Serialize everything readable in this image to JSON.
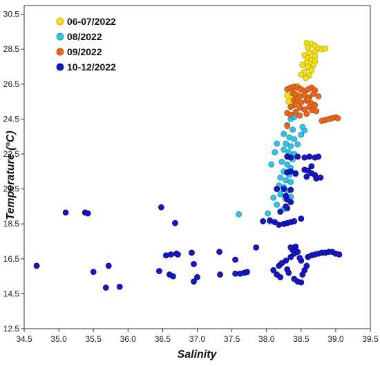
{
  "chart_data": {
    "type": "scatter",
    "xlabel": "Salinity",
    "ylabel": "Temperature (°C)",
    "xlim": [
      34.5,
      39.5
    ],
    "ylim": [
      12.5,
      31.0
    ],
    "xticks": [
      "34.5",
      "35.0",
      "35.5",
      "36.0",
      "36.5",
      "37.0",
      "37.5",
      "38.0",
      "38.5",
      "39.0",
      "39.5"
    ],
    "yticks": [
      "12.5",
      "14.5",
      "16.5",
      "18.5",
      "20.5",
      "22.5",
      "24.5",
      "26.5",
      "28.5",
      "30.5"
    ],
    "grid": false,
    "legend_position": "top-left",
    "series": [
      {
        "name": "06-07/2022",
        "color": "#f5e216",
        "edge": "#b8a20a",
        "points": [
          [
            38.58,
            28.85
          ],
          [
            38.65,
            28.8
          ],
          [
            38.6,
            28.6
          ],
          [
            38.7,
            28.7
          ],
          [
            38.75,
            28.55
          ],
          [
            38.8,
            28.5
          ],
          [
            38.85,
            28.55
          ],
          [
            38.62,
            28.3
          ],
          [
            38.7,
            28.35
          ],
          [
            38.55,
            28.15
          ],
          [
            38.6,
            28.0
          ],
          [
            38.65,
            27.9
          ],
          [
            38.7,
            27.8
          ],
          [
            38.58,
            27.75
          ],
          [
            38.52,
            27.6
          ],
          [
            38.6,
            27.5
          ],
          [
            38.65,
            27.3
          ],
          [
            38.55,
            27.2
          ],
          [
            38.5,
            27.05
          ],
          [
            38.62,
            27.0
          ],
          [
            38.57,
            26.85
          ],
          [
            38.68,
            27.6
          ],
          [
            38.45,
            26.4
          ],
          [
            38.5,
            26.2
          ],
          [
            38.4,
            26.0
          ],
          [
            38.45,
            25.9
          ],
          [
            38.35,
            25.7
          ],
          [
            38.3,
            25.85
          ],
          [
            38.4,
            25.6
          ],
          [
            38.32,
            25.5
          ],
          [
            38.38,
            25.45
          ],
          [
            38.7,
            28.1
          ]
        ]
      },
      {
        "name": "08/2022",
        "color": "#35c0e6",
        "edge": "#1c8fb3",
        "points": [
          [
            38.35,
            24.5
          ],
          [
            38.4,
            24.6
          ],
          [
            38.3,
            24.15
          ],
          [
            38.38,
            23.9
          ],
          [
            38.25,
            23.65
          ],
          [
            38.33,
            23.45
          ],
          [
            38.4,
            23.35
          ],
          [
            38.28,
            23.1
          ],
          [
            38.35,
            22.95
          ],
          [
            38.45,
            23.05
          ],
          [
            38.25,
            22.75
          ],
          [
            38.32,
            22.6
          ],
          [
            38.4,
            22.5
          ],
          [
            38.3,
            22.35
          ],
          [
            38.38,
            22.2
          ],
          [
            38.22,
            22.05
          ],
          [
            38.3,
            21.9
          ],
          [
            38.35,
            21.7
          ],
          [
            38.25,
            21.5
          ],
          [
            38.33,
            21.3
          ],
          [
            38.2,
            21.15
          ],
          [
            38.28,
            21.0
          ],
          [
            38.35,
            20.9
          ],
          [
            38.25,
            20.6
          ],
          [
            38.3,
            20.4
          ],
          [
            38.2,
            20.2
          ],
          [
            38.27,
            19.95
          ],
          [
            38.35,
            20.05
          ],
          [
            38.15,
            19.6
          ],
          [
            38.25,
            19.35
          ],
          [
            38.05,
            18.65
          ],
          [
            37.6,
            19.05
          ],
          [
            38.5,
            23.6
          ],
          [
            38.55,
            23.85
          ],
          [
            38.52,
            24.05
          ],
          [
            38.15,
            23.1
          ],
          [
            38.07,
            21.9
          ],
          [
            38.12,
            22.6
          ],
          [
            38.42,
            21.35
          ],
          [
            38.18,
            20.7
          ],
          [
            38.1,
            20.0
          ],
          [
            38.02,
            19.1
          ]
        ]
      },
      {
        "name": "09/2022",
        "color": "#e8681e",
        "edge": "#b04710",
        "points": [
          [
            38.3,
            26.2
          ],
          [
            38.35,
            26.3
          ],
          [
            38.4,
            26.35
          ],
          [
            38.45,
            26.3
          ],
          [
            38.5,
            26.2
          ],
          [
            38.55,
            26.1
          ],
          [
            38.6,
            26.2
          ],
          [
            38.65,
            26.3
          ],
          [
            38.7,
            26.15
          ],
          [
            38.38,
            26.0
          ],
          [
            38.42,
            25.9
          ],
          [
            38.48,
            25.8
          ],
          [
            38.55,
            25.85
          ],
          [
            38.62,
            25.75
          ],
          [
            38.68,
            25.95
          ],
          [
            38.75,
            25.8
          ],
          [
            38.4,
            25.6
          ],
          [
            38.45,
            25.5
          ],
          [
            38.5,
            25.45
          ],
          [
            38.58,
            25.55
          ],
          [
            38.65,
            25.4
          ],
          [
            38.7,
            25.3
          ],
          [
            38.4,
            25.3
          ],
          [
            38.48,
            25.15
          ],
          [
            38.55,
            25.05
          ],
          [
            38.62,
            25.2
          ],
          [
            38.66,
            25.0
          ],
          [
            38.3,
            24.85
          ],
          [
            38.35,
            24.75
          ],
          [
            38.42,
            24.9
          ],
          [
            38.58,
            24.8
          ],
          [
            38.72,
            24.95
          ],
          [
            38.48,
            24.7
          ],
          [
            38.3,
            24.1
          ],
          [
            38.85,
            24.45
          ],
          [
            38.9,
            24.5
          ],
          [
            38.95,
            24.55
          ],
          [
            39.0,
            24.6
          ],
          [
            39.03,
            24.55
          ],
          [
            38.8,
            24.4
          ],
          [
            38.6,
            25.65
          ],
          [
            38.35,
            25.2
          ]
        ]
      },
      {
        "name": "10-12/2022",
        "color": "#1616c2",
        "edge": "#0a0a80",
        "points": [
          [
            34.68,
            16.1
          ],
          [
            35.1,
            19.15
          ],
          [
            35.38,
            19.15
          ],
          [
            35.42,
            19.1
          ],
          [
            35.5,
            15.75
          ],
          [
            35.68,
            14.85
          ],
          [
            35.72,
            16.1
          ],
          [
            35.88,
            14.9
          ],
          [
            36.45,
            15.8
          ],
          [
            36.48,
            19.45
          ],
          [
            36.55,
            16.7
          ],
          [
            36.6,
            15.6
          ],
          [
            36.62,
            16.75
          ],
          [
            36.65,
            15.5
          ],
          [
            36.68,
            18.55
          ],
          [
            36.7,
            16.8
          ],
          [
            36.72,
            16.75
          ],
          [
            36.92,
            16.85
          ],
          [
            36.95,
            16.2
          ],
          [
            36.95,
            15.2
          ],
          [
            37.0,
            15.45
          ],
          [
            37.32,
            16.9
          ],
          [
            37.33,
            15.6
          ],
          [
            37.55,
            16.45
          ],
          [
            37.55,
            15.65
          ],
          [
            37.62,
            15.65
          ],
          [
            37.68,
            15.7
          ],
          [
            37.72,
            15.75
          ],
          [
            37.85,
            17.15
          ],
          [
            37.95,
            18.65
          ],
          [
            38.05,
            18.7
          ],
          [
            38.12,
            18.6
          ],
          [
            38.18,
            18.45
          ],
          [
            38.25,
            18.5
          ],
          [
            38.3,
            18.55
          ],
          [
            38.35,
            18.6
          ],
          [
            38.4,
            18.65
          ],
          [
            38.2,
            19.2
          ],
          [
            38.28,
            19.5
          ],
          [
            38.35,
            19.75
          ],
          [
            38.3,
            19.4
          ],
          [
            38.5,
            18.8
          ],
          [
            38.1,
            15.85
          ],
          [
            38.15,
            15.6
          ],
          [
            38.2,
            15.45
          ],
          [
            38.18,
            16.1
          ],
          [
            38.22,
            16.25
          ],
          [
            38.28,
            16.4
          ],
          [
            38.35,
            16.6
          ],
          [
            38.4,
            16.8
          ],
          [
            38.38,
            17.0
          ],
          [
            38.42,
            17.2
          ],
          [
            38.35,
            17.15
          ],
          [
            38.45,
            16.9
          ],
          [
            38.3,
            15.9
          ],
          [
            38.32,
            15.7
          ],
          [
            38.4,
            15.35
          ],
          [
            38.45,
            15.2
          ],
          [
            38.5,
            15.15
          ],
          [
            38.52,
            15.6
          ],
          [
            38.55,
            15.85
          ],
          [
            38.58,
            16.1
          ],
          [
            38.6,
            16.6
          ],
          [
            38.65,
            16.7
          ],
          [
            38.7,
            16.75
          ],
          [
            38.75,
            16.8
          ],
          [
            38.8,
            16.85
          ],
          [
            38.85,
            16.85
          ],
          [
            38.9,
            16.9
          ],
          [
            38.95,
            16.9
          ],
          [
            39.0,
            16.8
          ],
          [
            39.05,
            16.75
          ],
          [
            38.5,
            16.4
          ],
          [
            38.48,
            16.55
          ],
          [
            38.3,
            22.35
          ],
          [
            38.35,
            22.3
          ],
          [
            38.45,
            22.35
          ],
          [
            38.55,
            22.3
          ],
          [
            38.62,
            22.35
          ],
          [
            38.7,
            22.3
          ],
          [
            38.75,
            22.35
          ],
          [
            38.3,
            21.45
          ],
          [
            38.35,
            21.5
          ],
          [
            38.42,
            21.4
          ],
          [
            38.55,
            21.6
          ],
          [
            38.6,
            21.55
          ],
          [
            38.65,
            21.4
          ],
          [
            38.7,
            21.3
          ],
          [
            38.72,
            21.1
          ],
          [
            38.78,
            21.15
          ],
          [
            38.58,
            21.2
          ],
          [
            38.65,
            21.8
          ],
          [
            38.25,
            20.5
          ],
          [
            38.35,
            20.45
          ],
          [
            38.15,
            20.5
          ],
          [
            38.3,
            19.9
          ],
          [
            38.28,
            20.1
          ]
        ]
      }
    ]
  }
}
